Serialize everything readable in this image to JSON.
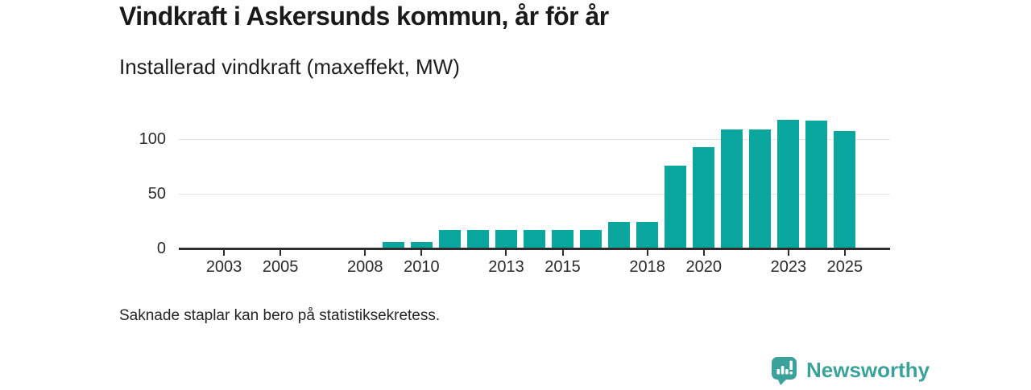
{
  "header": {
    "title": "Vindkraft i Askersunds kommun, år för år",
    "subtitle": "Installerad vindkraft (maxeffekt, MW)"
  },
  "footer": {
    "note": "Saknade staplar kan bero på statistiksekretess."
  },
  "branding": {
    "name": "Newsworthy",
    "icon": "bar-chart-speech-bubble-icon",
    "color": "#3ba29b"
  },
  "chart_data": {
    "type": "bar",
    "title": "Vindkraft i Askersunds kommun, år för år",
    "subtitle": "Installerad vindkraft (maxeffekt, MW)",
    "ylabel": "Installerad vindkraft (maxeffekt, MW)",
    "xlabel": "",
    "x": [
      2009,
      2010,
      2011,
      2012,
      2013,
      2014,
      2015,
      2016,
      2017,
      2018,
      2019,
      2020,
      2021,
      2022,
      2023,
      2024,
      2025
    ],
    "values": [
      6,
      6,
      17,
      17,
      17,
      17,
      17,
      17,
      24,
      24,
      76,
      93,
      109,
      109,
      118,
      117,
      108
    ],
    "x_ticks": [
      2003,
      2005,
      2008,
      2010,
      2013,
      2015,
      2018,
      2020,
      2023,
      2025
    ],
    "y_ticks": [
      0,
      50,
      100
    ],
    "xlim": [
      2001.4,
      2026.6
    ],
    "ylim": [
      0,
      124.6
    ],
    "grid": "horizontal-only",
    "legend": "none",
    "bar_color": "#0aa79e",
    "axis_color": "#2d2d2d",
    "gridline_color": "#e4e4e4"
  }
}
